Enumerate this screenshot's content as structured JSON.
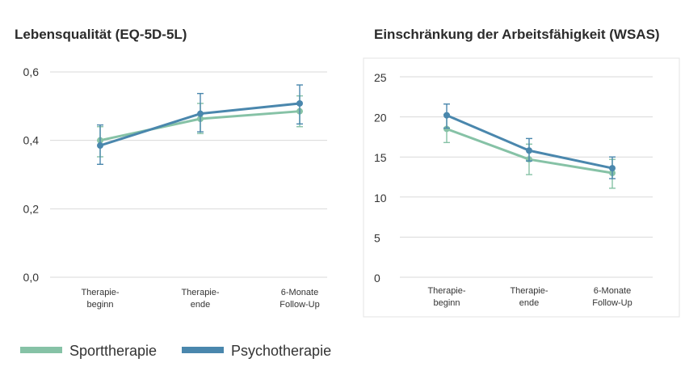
{
  "colors": {
    "sport": "#86c2a6",
    "psycho": "#4a87ad"
  },
  "legend": [
    {
      "name": "Sporttherapie",
      "color": "#86c2a6"
    },
    {
      "name": "Psychotherapie",
      "color": "#4a87ad"
    }
  ],
  "chart_data": [
    {
      "type": "line",
      "title": "Lebensqualität (EQ-5D-5L)",
      "categories": [
        [
          "Therapie-",
          "beginn"
        ],
        [
          "Therapie-",
          "ende"
        ],
        [
          "6-Monate",
          "Follow-Up"
        ]
      ],
      "ylim": [
        0,
        0.6
      ],
      "yticks": [
        0,
        0.2,
        0.4,
        0.6
      ],
      "ytick_labels": [
        "0,0",
        "0,2",
        "0,4",
        "0,6"
      ],
      "grid": true,
      "series": [
        {
          "name": "Sporttherapie",
          "values": [
            0.4,
            0.463,
            0.485
          ],
          "err_low": [
            0.352,
            0.42,
            0.44
          ],
          "err_high": [
            0.44,
            0.508,
            0.53
          ]
        },
        {
          "name": "Psychotherapie",
          "values": [
            0.385,
            0.478,
            0.508
          ],
          "err_low": [
            0.33,
            0.425,
            0.448
          ],
          "err_high": [
            0.445,
            0.537,
            0.562
          ]
        }
      ]
    },
    {
      "type": "line",
      "title": "Einschränkung der Arbeitsfähigkeit (WSAS)",
      "categories": [
        [
          "Therapie-",
          "beginn"
        ],
        [
          "Therapie-",
          "ende"
        ],
        [
          "6-Monate",
          "Follow-Up"
        ]
      ],
      "ylim": [
        0,
        25
      ],
      "yticks": [
        0,
        5,
        10,
        15,
        20,
        25
      ],
      "ytick_labels": [
        "0",
        "5",
        "10",
        "15",
        "20",
        "25"
      ],
      "grid": true,
      "series": [
        {
          "name": "Sporttherapie",
          "values": [
            18.5,
            14.7,
            13.0
          ],
          "err_low": [
            16.8,
            12.8,
            11.1
          ],
          "err_high": [
            20.3,
            16.6,
            14.7
          ]
        },
        {
          "name": "Psychotherapie",
          "values": [
            20.2,
            15.8,
            13.6
          ],
          "err_low": [
            18.6,
            14.5,
            12.3
          ],
          "err_high": [
            21.6,
            17.3,
            15.0
          ]
        }
      ]
    }
  ]
}
